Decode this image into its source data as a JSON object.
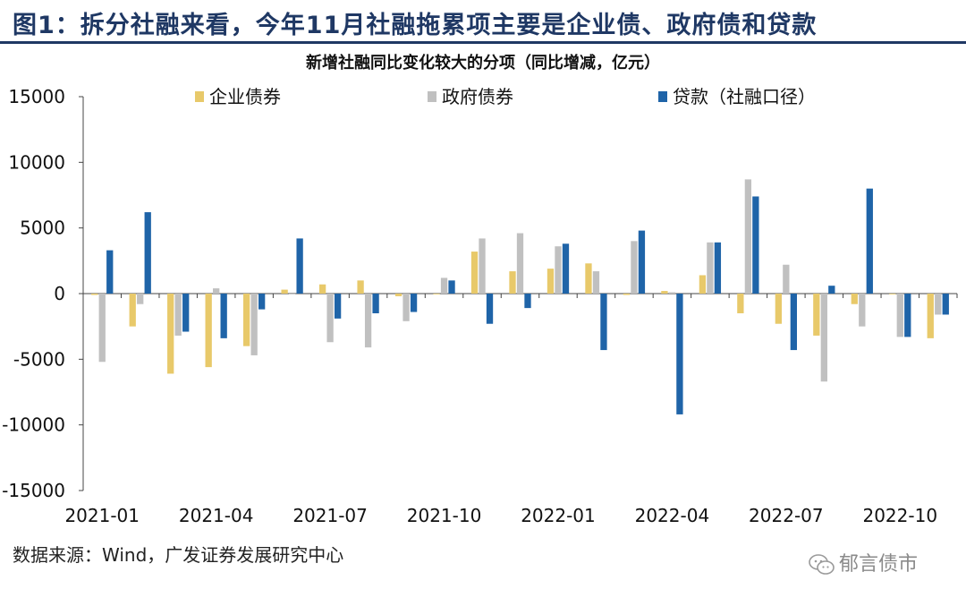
{
  "figure": {
    "title": "图1：拆分社融来看，今年11月社融拖累项主要是企业债、政府债和贷款",
    "source": "数据来源：Wind，广发证券发展研究中心",
    "watermark": "郁言债市",
    "watermark_icon": "wechat-icon"
  },
  "chart_data": {
    "type": "bar",
    "title": "新增社融同比变化较大的分项（同比增减，亿元）",
    "xlabel": "",
    "ylabel": "",
    "ylim": [
      -15000,
      15000
    ],
    "yticks": [
      15000,
      10000,
      5000,
      0,
      -5000,
      -10000,
      -15000
    ],
    "ytick_labels": [
      "15000",
      "10000",
      "5000",
      "0",
      "-5000",
      "-10000",
      "-15000"
    ],
    "categories": [
      "2021-01",
      "2021-02",
      "2021-03",
      "2021-04",
      "2021-05",
      "2021-06",
      "2021-07",
      "2021-08",
      "2021-09",
      "2021-10",
      "2021-11",
      "2021-12",
      "2022-01",
      "2022-02",
      "2022-03",
      "2022-04",
      "2022-05",
      "2022-06",
      "2022-07",
      "2022-08",
      "2022-09",
      "2022-10",
      "2022-11"
    ],
    "xtick_labels": [
      "2021-01",
      "2021-04",
      "2021-07",
      "2021-10",
      "2022-01",
      "2022-04",
      "2022-07",
      "2022-10"
    ],
    "xtick_label_indices": [
      0,
      3,
      6,
      9,
      12,
      15,
      18,
      21
    ],
    "legend_position": "top",
    "series": [
      {
        "name": "企业债券",
        "color": "#e8c96a",
        "values": [
          -100,
          -2500,
          -6100,
          -5600,
          -4000,
          300,
          700,
          1000,
          -200,
          0,
          3200,
          1700,
          1900,
          2300,
          -100,
          200,
          1400,
          -1500,
          -2300,
          -3200,
          -800,
          0,
          -3400
        ]
      },
      {
        "name": "政府债券",
        "color": "#c0c0c0",
        "values": [
          -5200,
          -800,
          -3200,
          400,
          -4700,
          0,
          -3700,
          -4100,
          -2100,
          1200,
          4200,
          4600,
          3600,
          1700,
          4000,
          100,
          3900,
          8700,
          2200,
          -6700,
          -2500,
          -3300,
          -1600
        ]
      },
      {
        "name": "贷款（社融口径）",
        "color": "#1f64a8",
        "values": [
          3300,
          6200,
          -2900,
          -3400,
          -1200,
          4200,
          -1900,
          -1500,
          -1400,
          1000,
          -2300,
          -1100,
          3800,
          -4300,
          4800,
          -9200,
          3900,
          7400,
          -4300,
          600,
          8000,
          -3300,
          -1600
        ]
      }
    ]
  }
}
